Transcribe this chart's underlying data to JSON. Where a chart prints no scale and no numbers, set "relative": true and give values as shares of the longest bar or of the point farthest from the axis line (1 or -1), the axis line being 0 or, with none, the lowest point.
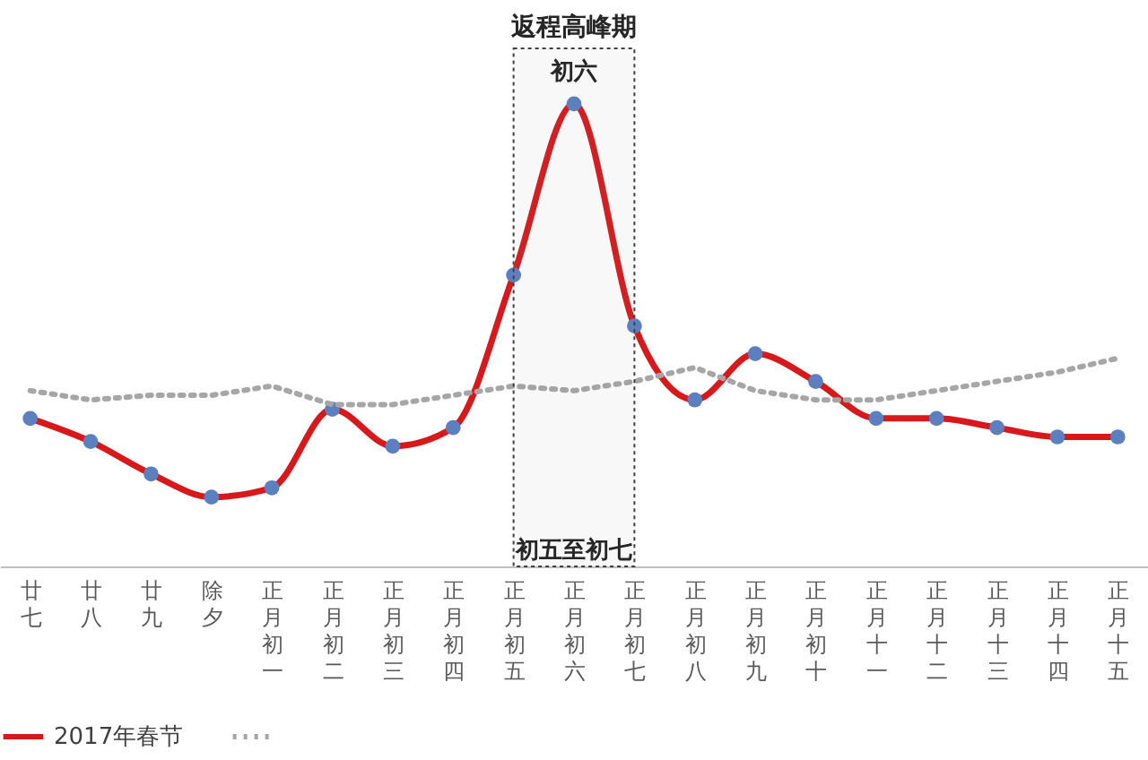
{
  "chart_data": {
    "type": "line",
    "title": "返程高峰期",
    "relative": true,
    "categories": [
      "廿七",
      "廿八",
      "廿九",
      "除夕",
      "正月初一",
      "正月初二",
      "正月初三",
      "正月初四",
      "正月初五",
      "正月初六",
      "正月初七",
      "正月初八",
      "正月初九",
      "正月初十",
      "正月十一",
      "正月十二",
      "正月十三",
      "正月十四",
      "正月十五"
    ],
    "series": [
      {
        "name": "2017年春节",
        "color": "#d7191c",
        "marker": "circle",
        "line_style": "solid",
        "values": [
          0.32,
          0.27,
          0.2,
          0.15,
          0.17,
          0.34,
          0.26,
          0.3,
          0.63,
          1,
          0.52,
          0.36,
          0.46,
          0.4,
          0.32,
          0.32,
          0.3,
          0.28,
          0.28
        ]
      },
      {
        "color": "#a6a6a6",
        "marker": "none",
        "line_style": "dotted",
        "values": [
          0.38,
          0.36,
          0.37,
          0.37,
          0.39,
          0.35,
          0.35,
          0.37,
          0.39,
          0.38,
          0.4,
          0.43,
          0.38,
          0.36,
          0.36,
          0.38,
          0.4,
          0.42,
          0.45
        ]
      }
    ],
    "bands": [
      {
        "axis": "x",
        "from": "正月初五",
        "to": "正月初七",
        "label": "初五至初七"
      }
    ],
    "annotations": [
      {
        "text": "初六",
        "x": "正月初六",
        "y": 1
      }
    ],
    "legend": "bottom",
    "grid": false
  }
}
